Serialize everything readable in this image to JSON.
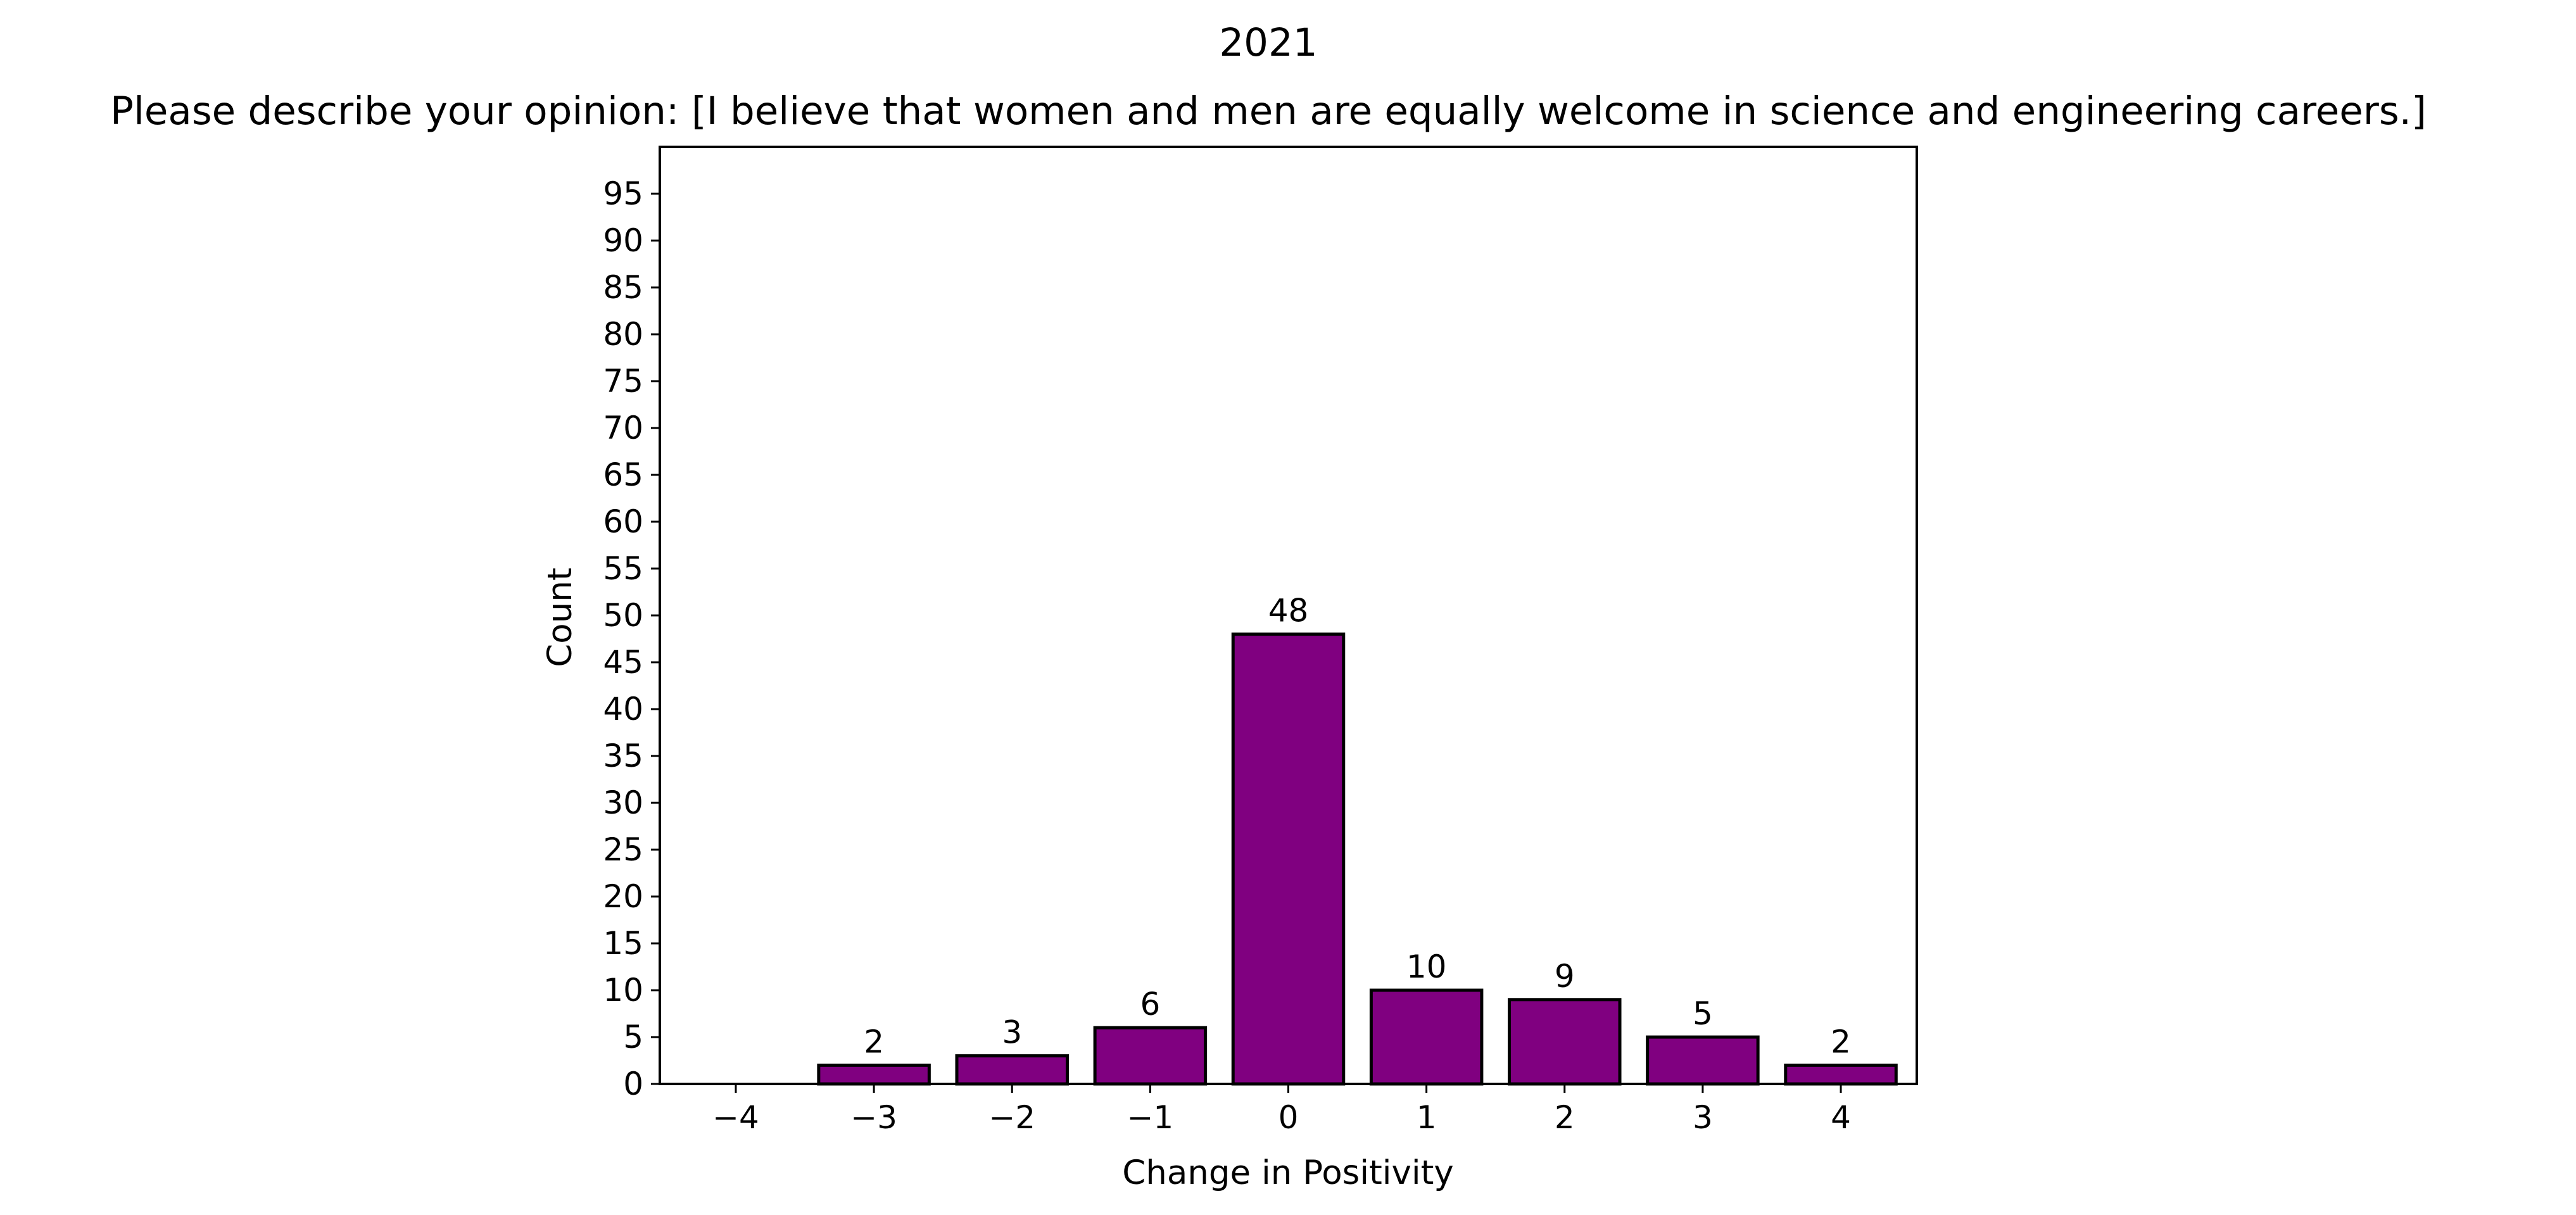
{
  "chart_data": {
    "type": "bar",
    "title": "2021",
    "subtitle": "Please describe your opinion: [I believe that women and men are equally welcome in science and engineering careers.]",
    "xlabel": "Change in Positivity",
    "ylabel": "Count",
    "categories": [
      "−4",
      "−3",
      "−2",
      "−1",
      "0",
      "1",
      "2",
      "3",
      "4"
    ],
    "x": [
      -4,
      -3,
      -2,
      -1,
      0,
      1,
      2,
      3,
      4
    ],
    "values": [
      0,
      2,
      3,
      6,
      48,
      10,
      9,
      5,
      2
    ],
    "data_labels": [
      "",
      "2",
      "3",
      "6",
      "48",
      "10",
      "9",
      "5",
      "2"
    ],
    "ylim": [
      0,
      100
    ],
    "yticks": [
      0,
      5,
      10,
      15,
      20,
      25,
      30,
      35,
      40,
      45,
      50,
      55,
      60,
      65,
      70,
      75,
      80,
      85,
      90,
      95
    ],
    "ytick_labels": [
      "0",
      "5",
      "10",
      "15",
      "20",
      "25",
      "30",
      "35",
      "40",
      "45",
      "50",
      "55",
      "60",
      "65",
      "70",
      "75",
      "80",
      "85",
      "90",
      "95"
    ],
    "grid": false,
    "legend": "none",
    "bar_color": "#800080",
    "edge_color": "#000000"
  }
}
